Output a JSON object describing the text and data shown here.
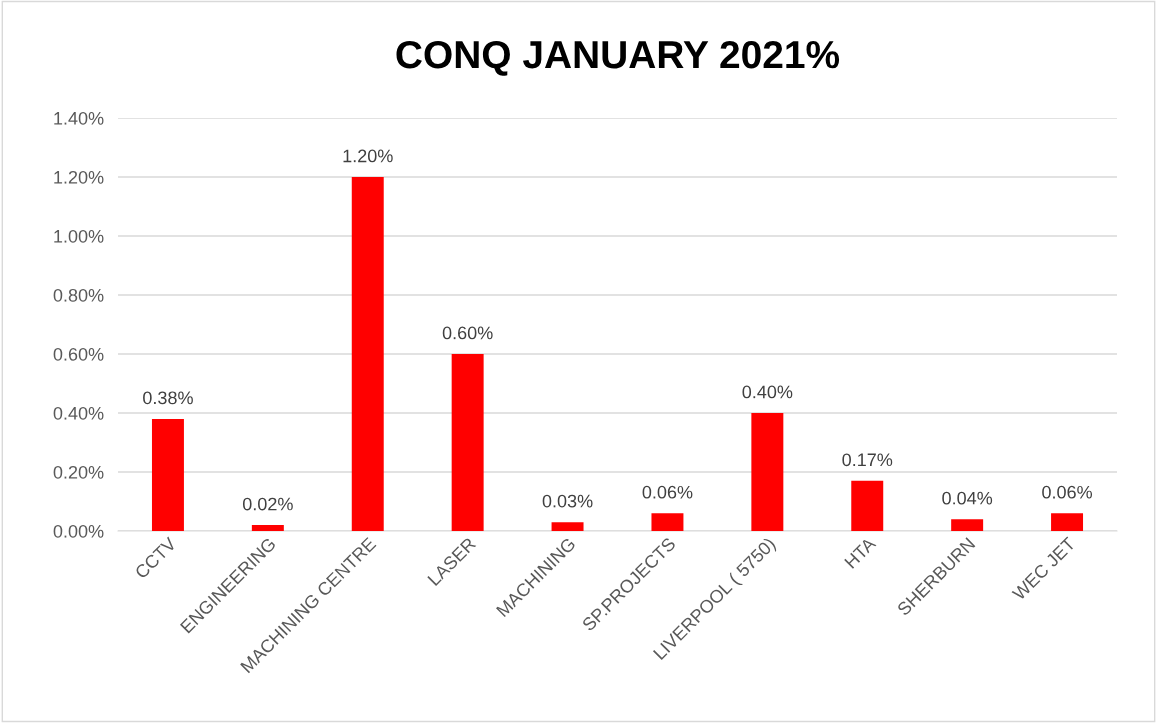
{
  "chart_data": {
    "type": "bar",
    "title": "CONQ JANUARY 2021%",
    "categories": [
      "CCTV",
      "ENGINEERING",
      "MACHINING CENTRE",
      "LASER",
      "MACHINING",
      "SP.PROJECTS",
      "LIVERPOOL ( 5750)",
      "HTA",
      "SHERBURN",
      "WEC JET"
    ],
    "values": [
      0.38,
      0.02,
      1.2,
      0.6,
      0.03,
      0.06,
      0.4,
      0.17,
      0.04,
      0.06
    ],
    "value_labels": [
      "0.38%",
      "0.02%",
      "1.20%",
      "0.60%",
      "0.03%",
      "0.06%",
      "0.40%",
      "0.17%",
      "0.04%",
      "0.06%"
    ],
    "color": "#ff0000",
    "ylim": [
      0,
      1.4
    ],
    "yticks": [
      {
        "value": 0,
        "label": "0.00%"
      },
      {
        "value": 0.2,
        "label": "0.20%"
      },
      {
        "value": 0.4,
        "label": "0.40%"
      },
      {
        "value": 0.6,
        "label": "0.60%"
      },
      {
        "value": 0.8,
        "label": "0.80%"
      },
      {
        "value": 1.0,
        "label": "1.00%"
      },
      {
        "value": 1.2,
        "label": "1.20%"
      },
      {
        "value": 1.4,
        "label": "1.40%"
      }
    ],
    "grid": "y",
    "legend": false
  }
}
